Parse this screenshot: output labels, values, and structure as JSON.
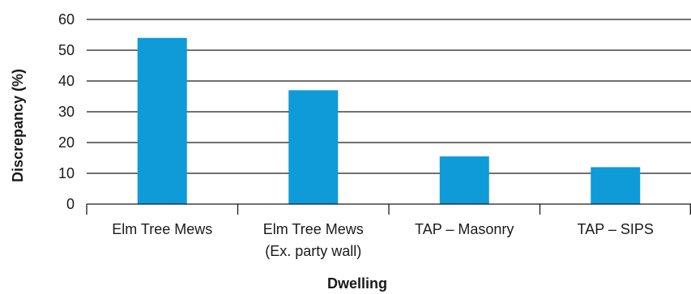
{
  "chart_data": {
    "type": "bar",
    "categories": [
      [
        "Elm Tree Mews"
      ],
      [
        "Elm Tree Mews",
        "(Ex. party wall)"
      ],
      [
        "TAP – Masonry"
      ],
      [
        "TAP – SIPS"
      ]
    ],
    "values": [
      54,
      37,
      15.5,
      12
    ],
    "xlabel": "Dwelling",
    "ylabel": "Discrepancy (%)",
    "ylim": [
      0,
      60
    ],
    "yticks": [
      0,
      10,
      20,
      30,
      40,
      50,
      60
    ],
    "grid": true,
    "bar_color": "#0f9ad8",
    "axis_color": "#1a1a1a"
  }
}
